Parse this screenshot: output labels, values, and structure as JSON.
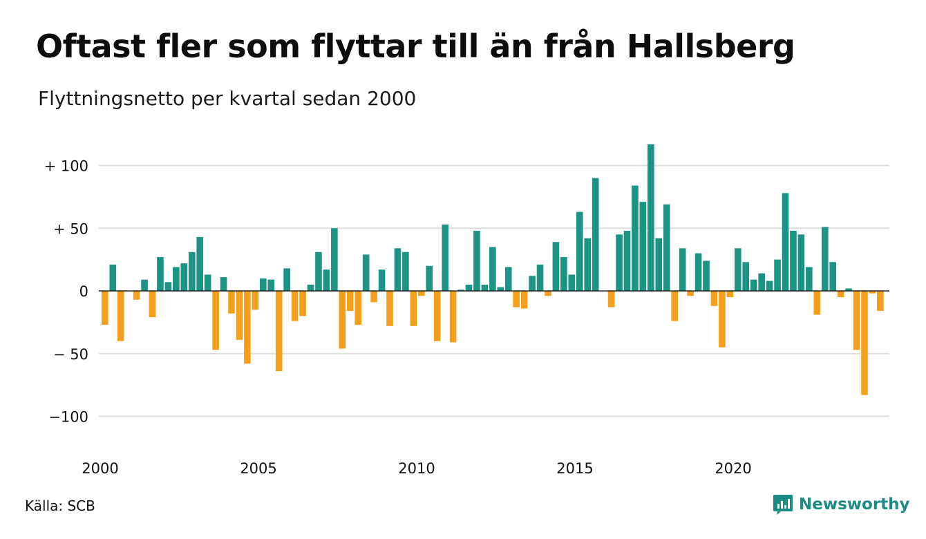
{
  "title": "Oftast fler som flyttar till än från Hallsberg",
  "subtitle": "Flyttningsnetto per kvartal sedan 2000",
  "source": "Källa: SCB",
  "brand": {
    "name": "Newsworthy",
    "icon": "newsworthy-logo-icon",
    "color": "#1c8b84"
  },
  "colors": {
    "positive": "#1b9385",
    "negative": "#f5a01c",
    "grid": "#dddddd",
    "zero_line": "#222222"
  },
  "chart_data": {
    "type": "bar",
    "x_start_year": 2000,
    "periods_per_year": 4,
    "x_ticks": [
      "2000",
      "2005",
      "2010",
      "2015",
      "2020"
    ],
    "y_ticks": [
      {
        "value": 100,
        "label": "+ 100"
      },
      {
        "value": 50,
        "label": "+  50"
      },
      {
        "value": 0,
        "label": "0"
      },
      {
        "value": -50,
        "label": "− 50"
      },
      {
        "value": -100,
        "label": "−100"
      }
    ],
    "ylim": [
      -125,
      120
    ],
    "grid": true,
    "values": [
      -27,
      21,
      -40,
      0,
      -7,
      9,
      -21,
      27,
      7,
      19,
      22,
      31,
      43,
      13,
      -47,
      11,
      -18,
      -39,
      -58,
      -15,
      10,
      9,
      -64,
      18,
      -24,
      -20,
      5,
      31,
      17,
      50,
      -46,
      -16,
      -27,
      29,
      -9,
      17,
      -28,
      34,
      31,
      -28,
      -4,
      20,
      -40,
      53,
      -41,
      1,
      5,
      48,
      5,
      35,
      3,
      19,
      -13,
      -14,
      12,
      21,
      -4,
      39,
      27,
      13,
      63,
      42,
      90,
      0,
      -13,
      45,
      48,
      84,
      71,
      117,
      42,
      69,
      -24,
      34,
      -4,
      30,
      24,
      -12,
      -45,
      -5,
      34,
      23,
      9,
      14,
      8,
      25,
      78,
      48,
      45,
      19,
      -19,
      51,
      23,
      -5,
      2,
      -47,
      -83,
      -2,
      -16
    ]
  }
}
